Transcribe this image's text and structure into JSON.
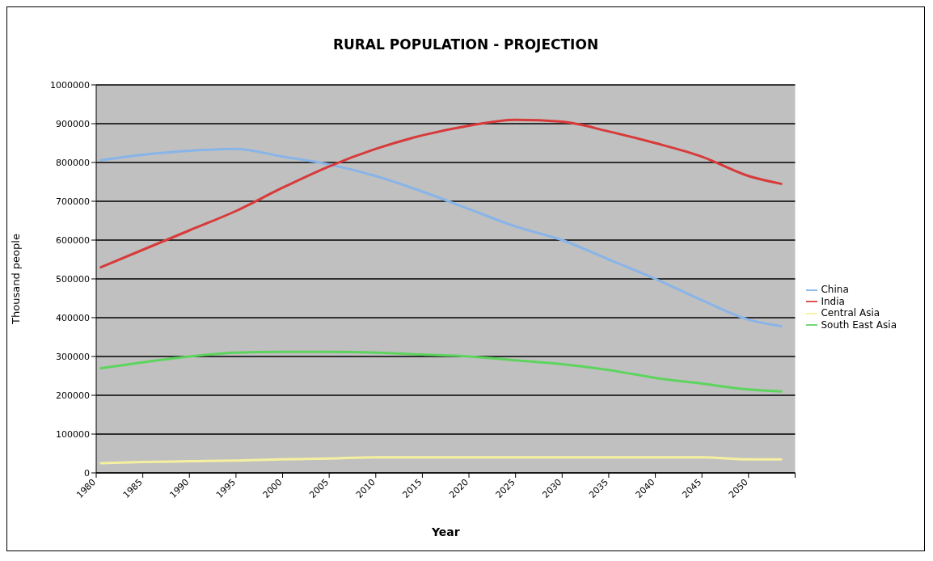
{
  "chart_data": {
    "type": "line",
    "title": "RURAL POPULATION - PROJECTION",
    "xlabel": "Year",
    "ylabel": "Thousand people",
    "x": [
      1980.5,
      1985,
      1990,
      1995,
      2000,
      2005,
      2010,
      2015,
      2020,
      2025,
      2030,
      2035,
      2040,
      2045,
      2050,
      2053.5
    ],
    "xlim": [
      1980,
      2055
    ],
    "xticks": [
      1980,
      1985,
      1990,
      1995,
      2000,
      2005,
      2010,
      2015,
      2020,
      2025,
      2030,
      2035,
      2040,
      2045,
      2050,
      {
        "value": 2055,
        "label": null
      }
    ],
    "ylim": [
      0,
      1000000
    ],
    "yticks": [
      0,
      100000,
      200000,
      300000,
      400000,
      500000,
      600000,
      700000,
      800000,
      900000,
      1000000
    ],
    "grid": "y",
    "legend": "right",
    "marker": "none",
    "line_style": "solid",
    "series": [
      {
        "name": "China",
        "color": "#88b4e8",
        "values": [
          806000,
          820000,
          830000,
          835000,
          815000,
          795000,
          765000,
          725000,
          680000,
          635000,
          600000,
          550000,
          500000,
          445000,
          395000,
          378000
        ]
      },
      {
        "name": "India",
        "color": "#d83a3a",
        "values": [
          530000,
          575000,
          625000,
          675000,
          735000,
          790000,
          835000,
          870000,
          895000,
          910000,
          905000,
          880000,
          850000,
          815000,
          765000,
          745000
        ]
      },
      {
        "name": "Central Asia",
        "color": "#f5f0a0",
        "values": [
          25000,
          28000,
          30000,
          32000,
          35000,
          37000,
          40000,
          40000,
          40000,
          40000,
          40000,
          40000,
          40000,
          40000,
          35000,
          35000
        ]
      },
      {
        "name": "South East Asia",
        "color": "#5dd45d",
        "values": [
          270000,
          285000,
          300000,
          310000,
          312000,
          312000,
          310000,
          305000,
          300000,
          290000,
          280000,
          265000,
          245000,
          230000,
          215000,
          210000
        ]
      }
    ]
  }
}
